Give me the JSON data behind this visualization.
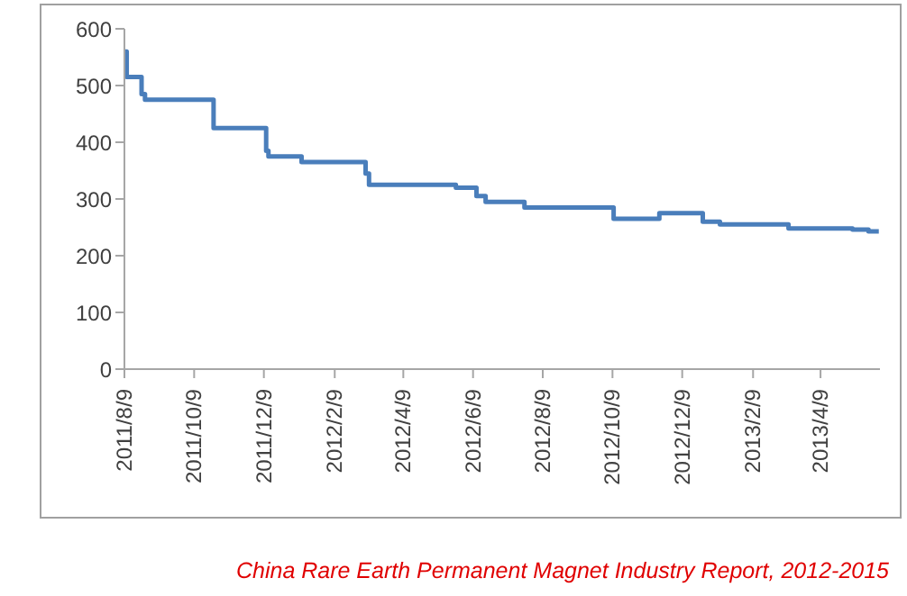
{
  "chart_data": {
    "type": "step",
    "x": [
      "2011-08-09",
      "2011-08-11",
      "2011-08-24",
      "2011-08-27",
      "2011-10-26",
      "2011-12-11",
      "2011-12-13",
      "2012-01-11",
      "2012-03-07",
      "2012-03-10",
      "2012-05-25",
      "2012-06-12",
      "2012-06-20",
      "2012-07-24",
      "2012-10-10",
      "2012-11-19",
      "2012-12-27",
      "2013-01-11",
      "2013-03-12",
      "2013-05-07",
      "2013-05-21",
      "2013-05-30"
    ],
    "series": [
      {
        "color": "#4a7ebb",
        "values": [
          560,
          515,
          485,
          475,
          425,
          385,
          375,
          365,
          345,
          325,
          320,
          305,
          295,
          285,
          265,
          275,
          260,
          255,
          248,
          246,
          243,
          243
        ]
      }
    ],
    "xlim": [
      "2011-08-09",
      "2013-05-31"
    ],
    "xticks": [
      {
        "value": "2011-08-09",
        "label": "2011/8/9"
      },
      {
        "value": "2011-10-09",
        "label": "2011/10/9"
      },
      {
        "value": "2011-12-09",
        "label": "2011/12/9"
      },
      {
        "value": "2012-02-09",
        "label": "2012/2/9"
      },
      {
        "value": "2012-04-09",
        "label": "2012/4/9"
      },
      {
        "value": "2012-06-09",
        "label": "2012/6/9"
      },
      {
        "value": "2012-08-09",
        "label": "2012/8/9"
      },
      {
        "value": "2012-10-09",
        "label": "2012/10/9"
      },
      {
        "value": "2012-12-09",
        "label": "2012/12/9"
      },
      {
        "value": "2013-02-09",
        "label": "2013/2/9"
      },
      {
        "value": "2013-04-09",
        "label": "2013/4/9"
      }
    ],
    "ylim": [
      0,
      600
    ],
    "yticks": [
      0,
      100,
      200,
      300,
      400,
      500,
      600
    ],
    "grid": false,
    "legend": false,
    "marker": "none",
    "line_style": "solid",
    "annotations": [
      "China Rare Earth Permanent Magnet Industry Report, 2012-2015"
    ]
  }
}
